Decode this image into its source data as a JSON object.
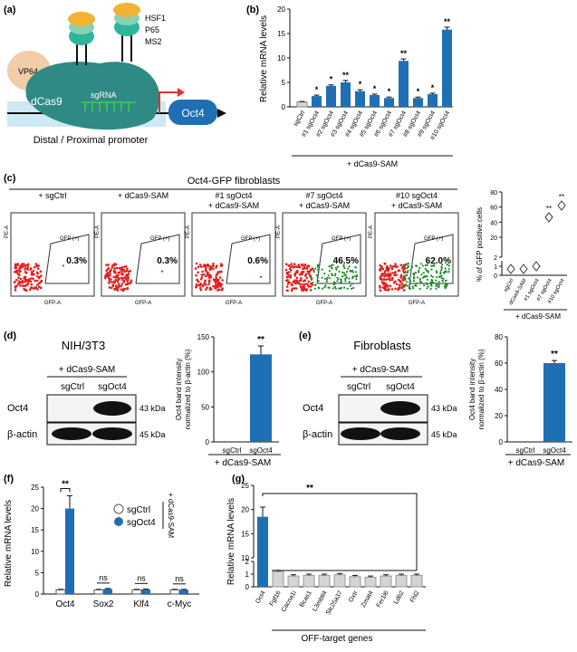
{
  "panels": {
    "a": {
      "label": "(a)",
      "proteins": [
        "HSF1",
        "P65",
        "MS2",
        "VP64",
        "dCas9",
        "sgRNA"
      ],
      "gene": "Oct4",
      "promoter": "Distal / Proximal promoter"
    },
    "b": {
      "label": "(b)",
      "ylabel": "Relative mRNA levels",
      "footer": "+ dCas9-SAM"
    },
    "c": {
      "label": "(c)",
      "title": "Oct4-GFP fibroblasts",
      "facs": [
        {
          "line1": "+ sgCtrl",
          "line2": "",
          "pct": "0.3%",
          "gate": "GFP (+)"
        },
        {
          "line1": "+ dCas9-SAM",
          "line2": "",
          "pct": "0.3%",
          "gate": "GFP (+)"
        },
        {
          "line1": "#1 sgOct4",
          "line2": "+ dCas9-SAM",
          "pct": "0.6%",
          "gate": "GFP (+)"
        },
        {
          "line1": "#7 sgOct4",
          "line2": "+ dCas9-SAM",
          "pct": "46.5%",
          "gate": "GFP (+)"
        },
        {
          "line1": "#10 sgOct4",
          "line2": "+ dCas9-SAM",
          "pct": "62.0%",
          "gate": "GFP (+)"
        }
      ],
      "axis_x": "GFP-A",
      "axis_y": "PE-A",
      "ylabel": "% of GFP positive cells",
      "footer": "+ dCas9-SAM"
    },
    "d": {
      "label": "(d)",
      "title": "NIH/3T3",
      "treatment": "+ dCas9-SAM",
      "lanes": [
        "sgCtrl",
        "sgOct4"
      ],
      "bands": [
        "Oct4",
        "β-actin"
      ],
      "sizes": [
        "43 kDa",
        "45 kDa"
      ],
      "ylabel": "Oct4 band intensity normalized to β-actin (%)",
      "footer": "+ dCas9-SAM"
    },
    "e": {
      "label": "(e)",
      "title": "Fibroblasts",
      "treatment": "+ dCas9-SAM",
      "lanes": [
        "sgCtrl",
        "sgOct4"
      ],
      "bands": [
        "Oct4",
        "β-actin"
      ],
      "sizes": [
        "43 kDa",
        "45 kDa"
      ],
      "ylabel": "Oct4 band intensity normalized to β-actin (%)",
      "footer": "+ dCas9-SAM"
    },
    "f": {
      "label": "(f)",
      "ylabel": "Relative mRNA levels",
      "legend": [
        "sgCtrl",
        "sgOct4"
      ],
      "legend_side": "+ dCas9-SAM"
    },
    "g": {
      "label": "(g)",
      "ylabel": "Relative mRNA levels",
      "footer": "OFF-target genes"
    }
  },
  "colors": {
    "blue": "#1f6fb4",
    "grey": "#d4d4d4",
    "red": "#e02020",
    "green": "#1f8a2a"
  },
  "chart_data": [
    {
      "id": "b",
      "type": "bar",
      "categories": [
        "sgCtrl",
        "#1 sgOct4",
        "#2 sgOct4",
        "#3 sgOct4",
        "#4 sgOct4",
        "#5 sgOct4",
        "#6 sgOct4",
        "#7 sgOct4",
        "#8 sgOct4",
        "#9 sgOct4",
        "#10 sgOct4"
      ],
      "values": [
        1.0,
        2.2,
        4.3,
        5.0,
        3.2,
        2.4,
        1.8,
        9.4,
        1.8,
        2.6,
        15.8
      ],
      "errors": [
        0.1,
        0.2,
        0.2,
        0.4,
        0.3,
        0.2,
        0.2,
        0.4,
        0.2,
        0.2,
        0.5
      ],
      "significance": [
        "",
        "*",
        "*",
        "**",
        "*",
        "*",
        "*",
        "**",
        "*",
        "*",
        "**"
      ],
      "ylim": [
        0,
        20
      ],
      "yticks": [
        0,
        5,
        10,
        15,
        20
      ],
      "ylabel": "Relative mRNA levels"
    },
    {
      "id": "c",
      "type": "scatter",
      "categories": [
        "sgCtrl",
        "dCas9-SAM",
        "#1 sgOct4",
        "#7 sgOct4",
        "#10 sgOct4"
      ],
      "values": [
        0.3,
        0.3,
        0.6,
        46.5,
        62.0
      ],
      "significance": [
        "",
        "",
        "",
        "**",
        "**"
      ],
      "ylim": [
        0,
        80
      ],
      "yticks": [
        0,
        1,
        2,
        20,
        40,
        60,
        80
      ],
      "ylabel": "% of GFP positive cells"
    },
    {
      "id": "d",
      "type": "bar",
      "categories": [
        "sgCtrl",
        "sgOct4"
      ],
      "values": [
        0,
        125
      ],
      "errors": [
        0,
        12
      ],
      "significance": [
        "",
        "**"
      ],
      "ylim": [
        0,
        150
      ],
      "yticks": [
        0,
        50,
        100,
        150
      ],
      "ylabel": "Oct4 band intensity normalized to β-actin (%)"
    },
    {
      "id": "e",
      "type": "bar",
      "categories": [
        "sgCtrl",
        "sgOct4"
      ],
      "values": [
        0,
        60
      ],
      "errors": [
        0,
        2
      ],
      "significance": [
        "",
        "**"
      ],
      "ylim": [
        0,
        80
      ],
      "yticks": [
        0,
        20,
        40,
        60,
        80
      ],
      "ylabel": "Oct4 band intensity normalized to β-actin (%)"
    },
    {
      "id": "f",
      "type": "bar",
      "categories": [
        "Oct4",
        "Sox2",
        "Klf4",
        "c-Myc"
      ],
      "series": [
        {
          "name": "sgCtrl",
          "values": [
            1.0,
            1.0,
            1.0,
            1.0
          ],
          "errors": [
            0.1,
            0.1,
            0.1,
            0.1
          ]
        },
        {
          "name": "sgOct4",
          "values": [
            20.0,
            1.2,
            1.1,
            1.0
          ],
          "errors": [
            3.0,
            0.1,
            0.1,
            0.1
          ]
        }
      ],
      "significance": [
        "**",
        "ns",
        "ns",
        "ns"
      ],
      "ylim": [
        0,
        25
      ],
      "yticks": [
        0,
        5,
        10,
        15,
        20,
        25
      ],
      "ylabel": "Relative mRNA levels"
    },
    {
      "id": "g",
      "type": "bar",
      "categories": [
        "Oct4",
        "Fgf16",
        "Cacna1i",
        "Bcas1",
        "L3mbtl4",
        "Slc25a37",
        "Oxtr",
        "Zmat4",
        "Fer1l6",
        "Ldb2",
        "Fhl2"
      ],
      "values": [
        18.5,
        1.2,
        0.85,
        0.9,
        0.9,
        0.95,
        0.8,
        0.75,
        0.85,
        0.9,
        0.9
      ],
      "errors": [
        2.0,
        0.1,
        0.1,
        0.1,
        0.1,
        0.1,
        0.1,
        0.1,
        0.1,
        0.1,
        0.1
      ],
      "significance": [
        "**"
      ],
      "ylim": [
        0,
        25
      ],
      "yticks": [
        0,
        1,
        2,
        10,
        15,
        20,
        25
      ],
      "ylabel": "Relative mRNA levels"
    }
  ]
}
